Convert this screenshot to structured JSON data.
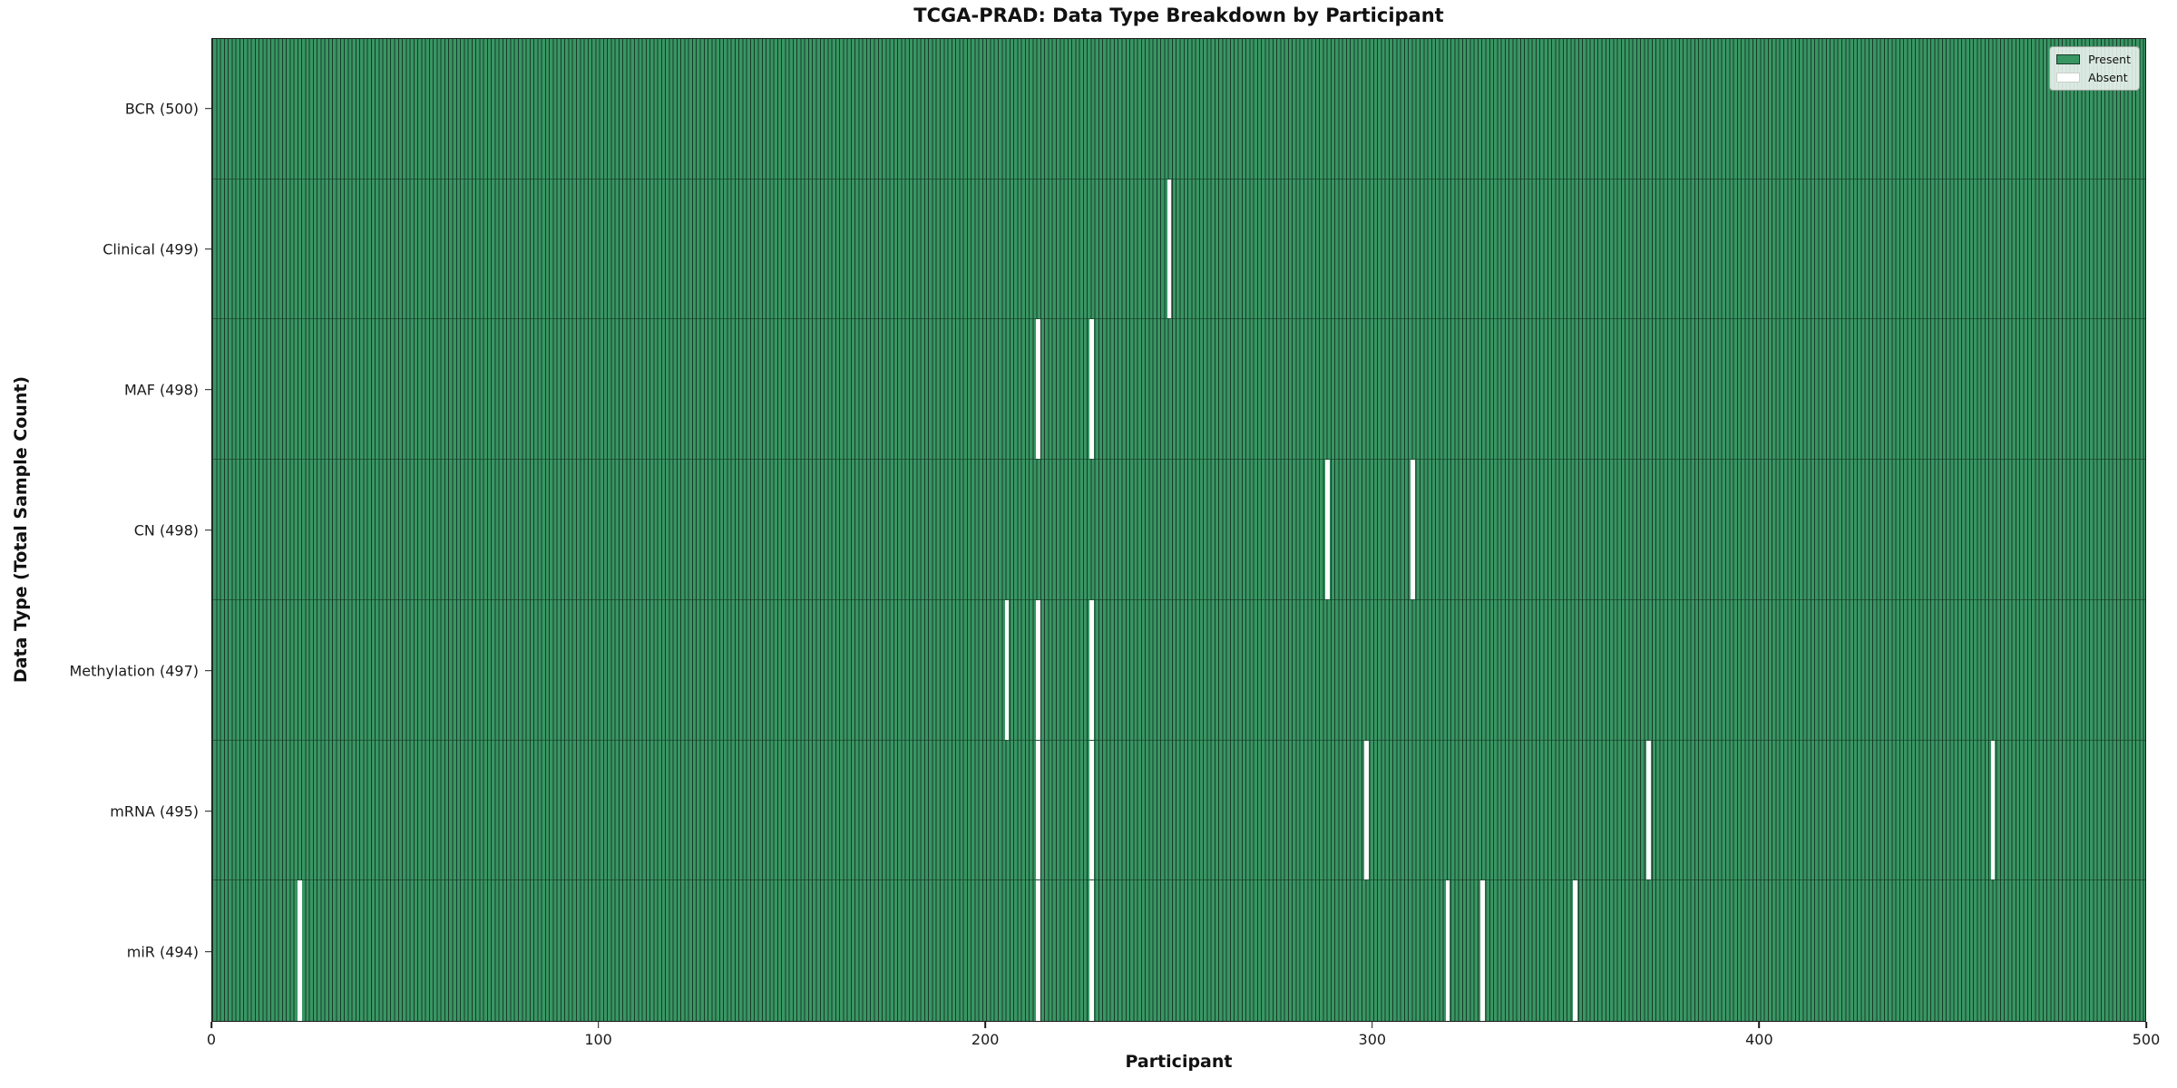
{
  "title": "TCGA-PRAD: Data Type Breakdown by Participant",
  "chart_data": {
    "type": "heatmap",
    "title": "TCGA-PRAD: Data Type Breakdown by Participant",
    "xlabel": "Participant",
    "ylabel": "Data Type (Total Sample Count)",
    "xlim": [
      0,
      500
    ],
    "x_ticks": [
      0,
      100,
      200,
      300,
      400,
      500
    ],
    "n_participants": 500,
    "grid": false,
    "legend_position": "upper right",
    "legend_entries": [
      {
        "label": "Present",
        "color": "#389663"
      },
      {
        "label": "Absent",
        "color": "#ffffff"
      }
    ],
    "colors": {
      "present": "#389663",
      "absent": "#ffffff",
      "bar_edge": "#1a3a29"
    },
    "rows": [
      {
        "label": "BCR (500)",
        "name": "BCR",
        "total": 500,
        "absent_participants": []
      },
      {
        "label": "Clinical (499)",
        "name": "Clinical",
        "total": 499,
        "absent_participants": [
          247
        ]
      },
      {
        "label": "MAF (498)",
        "name": "MAF",
        "total": 498,
        "absent_participants": [
          213,
          227
        ]
      },
      {
        "label": "CN (498)",
        "name": "CN",
        "total": 498,
        "absent_participants": [
          288,
          310
        ]
      },
      {
        "label": "Methylation (497)",
        "name": "Methylation",
        "total": 497,
        "absent_participants": [
          205,
          213,
          227
        ]
      },
      {
        "label": "mRNA (495)",
        "name": "mRNA",
        "total": 495,
        "absent_participants": [
          213,
          227,
          298,
          371,
          460
        ]
      },
      {
        "label": "miR (494)",
        "name": "miR",
        "total": 494,
        "absent_participants": [
          22,
          213,
          227,
          319,
          328,
          352
        ]
      }
    ]
  }
}
